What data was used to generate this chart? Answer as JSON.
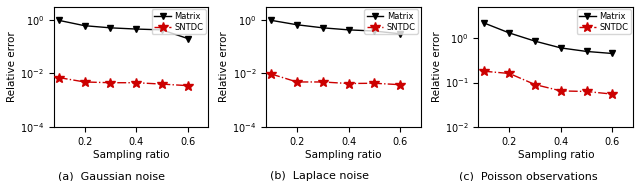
{
  "panels": [
    {
      "title": "(a)  Gaussian noise",
      "matrix_x": [
        0.1,
        0.2,
        0.3,
        0.4,
        0.5,
        0.6
      ],
      "matrix_y": [
        0.95,
        0.6,
        0.5,
        0.45,
        0.42,
        0.2
      ],
      "sntdc_x": [
        0.1,
        0.2,
        0.3,
        0.4,
        0.5,
        0.6
      ],
      "sntdc_y": [
        0.007,
        0.0048,
        0.0045,
        0.0045,
        0.004,
        0.0035
      ],
      "ylim": [
        0.0001,
        3
      ],
      "yticks": [
        0.0001,
        0.01,
        1.0
      ],
      "ylabel": "Relative error"
    },
    {
      "title": "(b)  Laplace noise",
      "matrix_x": [
        0.1,
        0.2,
        0.3,
        0.4,
        0.5,
        0.6
      ],
      "matrix_y": [
        0.95,
        0.65,
        0.5,
        0.42,
        0.38,
        0.3
      ],
      "sntdc_x": [
        0.1,
        0.2,
        0.3,
        0.4,
        0.5,
        0.6
      ],
      "sntdc_y": [
        0.0095,
        0.0048,
        0.0048,
        0.0042,
        0.0043,
        0.0038
      ],
      "ylim": [
        0.0001,
        3
      ],
      "yticks": [
        0.0001,
        0.01,
        1.0
      ],
      "ylabel": "Relative error"
    },
    {
      "title": "(c)  Poisson observations",
      "matrix_x": [
        0.1,
        0.2,
        0.3,
        0.4,
        0.5,
        0.6
      ],
      "matrix_y": [
        2.2,
        1.3,
        0.85,
        0.6,
        0.5,
        0.45
      ],
      "sntdc_x": [
        0.1,
        0.2,
        0.3,
        0.4,
        0.5,
        0.6
      ],
      "sntdc_y": [
        0.18,
        0.16,
        0.09,
        0.065,
        0.063,
        0.055
      ],
      "ylim": [
        0.01,
        5
      ],
      "yticks": [
        0.01,
        0.1,
        1.0
      ],
      "ylabel": "Relative error"
    }
  ],
  "xlabel": "Sampling ratio",
  "matrix_color": "#000000",
  "sntdc_color": "#cc0000",
  "matrix_marker": "v",
  "sntdc_marker": "*",
  "matrix_label": "Matrix",
  "sntdc_label": "SNTDC",
  "xticks": [
    0.2,
    0.4,
    0.6
  ],
  "figsize": [
    6.4,
    1.81
  ],
  "dpi": 100
}
